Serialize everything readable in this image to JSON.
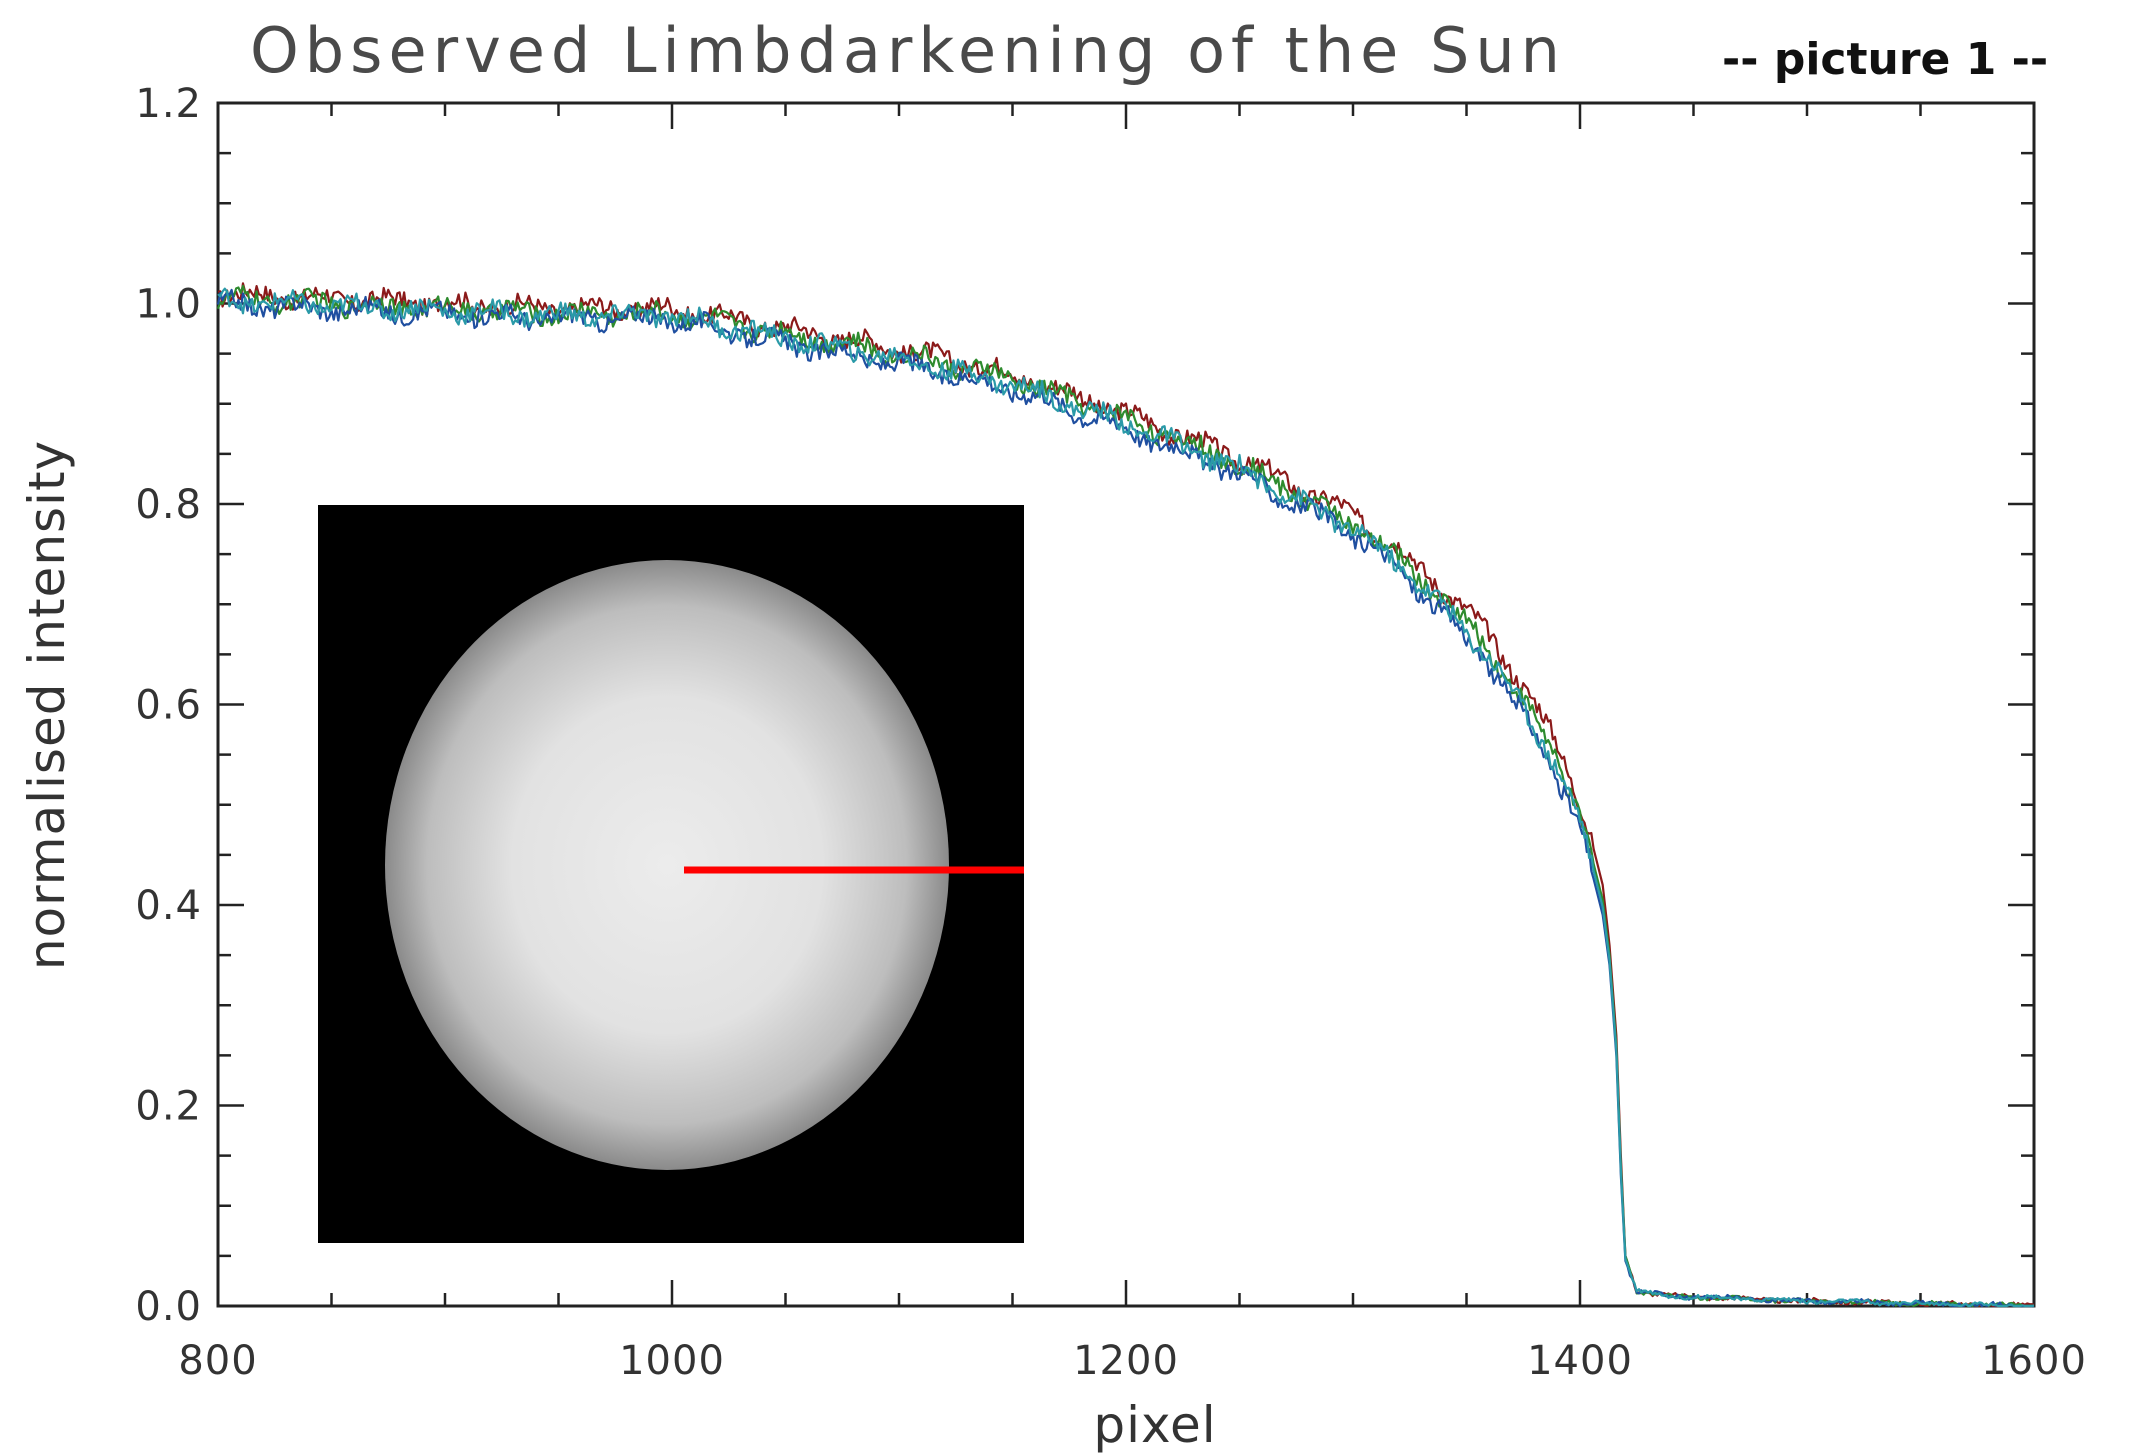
{
  "chart_data": {
    "type": "line",
    "title": "Observed Limbdarkening of the Sun",
    "subtitle": "-- picture 1 --",
    "xlabel": "pixel",
    "ylabel": "normalised intensity",
    "xlim": [
      800,
      1600
    ],
    "ylim": [
      0.0,
      1.2
    ],
    "x_ticks": [
      800,
      1000,
      1200,
      1400,
      1600
    ],
    "x_tick_labels": [
      "800",
      "1000",
      "1200",
      "1400",
      "1600"
    ],
    "y_ticks": [
      0.0,
      0.2,
      0.4,
      0.6,
      0.8,
      1.0,
      1.2
    ],
    "y_tick_labels": [
      "0.0",
      "0.2",
      "0.4",
      "0.6",
      "0.8",
      "1.0",
      "1.2"
    ],
    "grid": false,
    "legend": "none",
    "series": [
      {
        "color": "#8b1a1a",
        "x": [
          800,
          850,
          900,
          950,
          1000,
          1050,
          1100,
          1150,
          1200,
          1250,
          1300,
          1320,
          1340,
          1360,
          1380,
          1390,
          1400,
          1405,
          1410,
          1413,
          1416,
          1418,
          1420,
          1425,
          1440,
          1500,
          1600
        ],
        "y": [
          1.01,
          1.005,
          1.0,
          0.995,
          0.995,
          0.975,
          0.955,
          0.93,
          0.89,
          0.845,
          0.79,
          0.755,
          0.715,
          0.67,
          0.6,
          0.56,
          0.505,
          0.465,
          0.42,
          0.36,
          0.27,
          0.15,
          0.05,
          0.015,
          0.01,
          0.005,
          0.0
        ]
      },
      {
        "color": "#2e8b2e",
        "x": [
          800,
          850,
          900,
          950,
          1000,
          1050,
          1100,
          1150,
          1200,
          1250,
          1300,
          1320,
          1340,
          1360,
          1380,
          1390,
          1400,
          1405,
          1410,
          1413,
          1416,
          1418,
          1420,
          1425,
          1440,
          1500,
          1600
        ],
        "y": [
          1.005,
          1.0,
          0.995,
          0.99,
          0.99,
          0.97,
          0.95,
          0.925,
          0.885,
          0.84,
          0.78,
          0.745,
          0.705,
          0.655,
          0.585,
          0.545,
          0.49,
          0.45,
          0.405,
          0.35,
          0.26,
          0.14,
          0.05,
          0.015,
          0.01,
          0.005,
          0.0
        ]
      },
      {
        "color": "#1f4fa0",
        "x": [
          800,
          850,
          900,
          950,
          1000,
          1050,
          1100,
          1150,
          1200,
          1250,
          1300,
          1320,
          1340,
          1360,
          1380,
          1390,
          1400,
          1405,
          1410,
          1413,
          1416,
          1418,
          1420,
          1425,
          1440,
          1500,
          1600
        ],
        "y": [
          1.0,
          0.995,
          0.99,
          0.985,
          0.985,
          0.96,
          0.94,
          0.915,
          0.875,
          0.83,
          0.77,
          0.735,
          0.69,
          0.64,
          0.57,
          0.53,
          0.475,
          0.435,
          0.39,
          0.34,
          0.25,
          0.13,
          0.045,
          0.015,
          0.01,
          0.005,
          0.0
        ]
      },
      {
        "color": "#2a9aa8",
        "x": [
          800,
          850,
          900,
          950,
          1000,
          1050,
          1100,
          1150,
          1200,
          1250,
          1300,
          1320,
          1340,
          1360,
          1380,
          1390,
          1400,
          1405,
          1410,
          1413,
          1416,
          1418,
          1420,
          1425,
          1440,
          1500,
          1600
        ],
        "y": [
          1.003,
          0.998,
          0.993,
          0.988,
          0.988,
          0.965,
          0.945,
          0.92,
          0.88,
          0.835,
          0.775,
          0.74,
          0.697,
          0.648,
          0.578,
          0.538,
          0.483,
          0.443,
          0.398,
          0.345,
          0.255,
          0.135,
          0.047,
          0.015,
          0.01,
          0.005,
          0.0
        ]
      }
    ],
    "inset": {
      "description_visible": false,
      "background": "#000000",
      "disk_color": "#e6e6e6",
      "profile_line_color": "#ff0000"
    }
  }
}
